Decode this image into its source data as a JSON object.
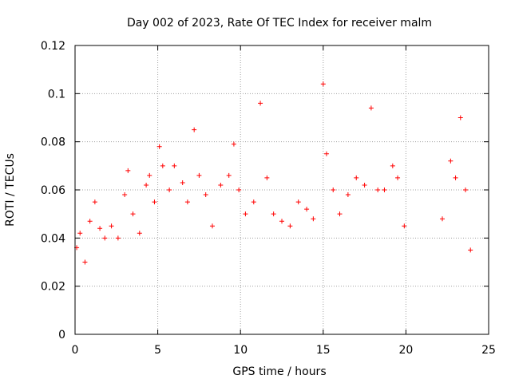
{
  "chart_data": {
    "type": "scatter",
    "title": "Day 002 of 2023, Rate Of TEC Index for receiver malm",
    "xlabel": "GPS time / hours",
    "ylabel": "ROTI / TECUs",
    "xlim": [
      0,
      25
    ],
    "ylim": [
      0,
      0.12
    ],
    "x_ticks": [
      "0",
      "5",
      "10",
      "15",
      "20",
      "25"
    ],
    "y_ticks": [
      "0",
      "0.02",
      "0.04",
      "0.06",
      "0.08",
      "0.1",
      "0.12"
    ],
    "grid": true,
    "marker": "+",
    "color": "#ff0000",
    "data_gaps_hours": [
      [
        20.0,
        22.1
      ]
    ],
    "series": [
      {
        "points": [
          [
            0.1,
            0.036
          ],
          [
            0.3,
            0.042
          ],
          [
            0.6,
            0.03
          ],
          [
            0.9,
            0.047
          ],
          [
            1.2,
            0.055
          ],
          [
            1.5,
            0.044
          ],
          [
            1.8,
            0.04
          ],
          [
            2.2,
            0.045
          ],
          [
            2.6,
            0.04
          ],
          [
            3.0,
            0.058
          ],
          [
            3.2,
            0.068
          ],
          [
            3.5,
            0.05
          ],
          [
            3.9,
            0.042
          ],
          [
            4.3,
            0.062
          ],
          [
            4.5,
            0.066
          ],
          [
            4.8,
            0.055
          ],
          [
            5.1,
            0.078
          ],
          [
            5.3,
            0.07
          ],
          [
            5.7,
            0.06
          ],
          [
            6.0,
            0.07
          ],
          [
            6.5,
            0.063
          ],
          [
            6.8,
            0.055
          ],
          [
            7.2,
            0.085
          ],
          [
            7.5,
            0.066
          ],
          [
            7.9,
            0.058
          ],
          [
            8.3,
            0.045
          ],
          [
            8.8,
            0.062
          ],
          [
            9.3,
            0.066
          ],
          [
            9.6,
            0.079
          ],
          [
            9.9,
            0.06
          ],
          [
            10.3,
            0.05
          ],
          [
            10.8,
            0.055
          ],
          [
            11.2,
            0.096
          ],
          [
            11.6,
            0.065
          ],
          [
            12.0,
            0.05
          ],
          [
            12.5,
            0.047
          ],
          [
            13.0,
            0.045
          ],
          [
            13.5,
            0.055
          ],
          [
            14.0,
            0.052
          ],
          [
            14.4,
            0.048
          ],
          [
            15.0,
            0.104
          ],
          [
            15.2,
            0.075
          ],
          [
            15.6,
            0.06
          ],
          [
            16.0,
            0.05
          ],
          [
            16.5,
            0.058
          ],
          [
            17.0,
            0.065
          ],
          [
            17.5,
            0.062
          ],
          [
            17.9,
            0.094
          ],
          [
            18.3,
            0.06
          ],
          [
            18.7,
            0.06
          ],
          [
            19.2,
            0.07
          ],
          [
            19.5,
            0.065
          ],
          [
            19.9,
            0.045
          ],
          [
            22.2,
            0.048
          ],
          [
            22.7,
            0.072
          ],
          [
            23.0,
            0.065
          ],
          [
            23.3,
            0.09
          ],
          [
            23.6,
            0.06
          ],
          [
            23.9,
            0.035
          ]
        ]
      }
    ]
  }
}
